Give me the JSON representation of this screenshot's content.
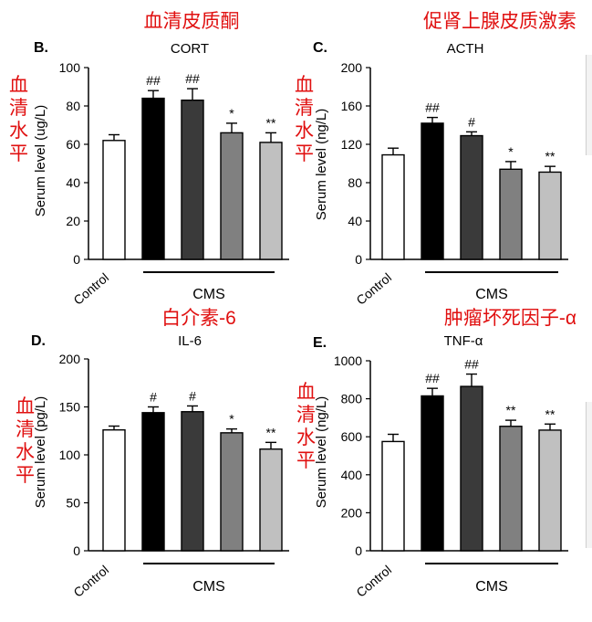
{
  "colors": {
    "annotation": "#e01010",
    "axis": "#000000",
    "control_fill": "#ffffff",
    "bar_fills": [
      "#ffffff",
      "#000000",
      "#3a3a3a",
      "#808080",
      "#c0c0c0"
    ]
  },
  "chart_data": [
    {
      "type": "bar",
      "panel_letter": "B.",
      "title": "CORT",
      "annotation_title": "血清皮质酮",
      "annotation_ylabel": "血清水平",
      "ylabel": "Serum level  (ug/L)",
      "xlabel": "",
      "ylim": [
        0,
        100
      ],
      "yticks": [
        0,
        20,
        40,
        60,
        80,
        100
      ],
      "categories": [
        "Control",
        "CMS-1",
        "CMS-2",
        "CMS-3",
        "CMS-4"
      ],
      "category_labels": [
        "Control",
        "",
        "",
        "",
        ""
      ],
      "group_label": "CMS",
      "values": [
        62,
        84,
        83,
        66,
        61
      ],
      "errors": [
        3,
        4,
        6,
        5,
        5
      ],
      "significance": [
        "",
        "##",
        "##",
        "*",
        "**"
      ]
    },
    {
      "type": "bar",
      "panel_letter": "C.",
      "title": "ACTH",
      "annotation_title": "促肾上腺皮质激素",
      "annotation_ylabel": "血清水平",
      "ylabel": "Serum level (ng/L)",
      "xlabel": "",
      "ylim": [
        0,
        200
      ],
      "yticks": [
        0,
        40,
        80,
        120,
        160,
        200
      ],
      "categories": [
        "Control",
        "CMS-1",
        "CMS-2",
        "CMS-3",
        "CMS-4"
      ],
      "category_labels": [
        "Control",
        "",
        "",
        "",
        ""
      ],
      "group_label": "CMS",
      "values": [
        109,
        142,
        129,
        94,
        91
      ],
      "errors": [
        7,
        6,
        4,
        8,
        6
      ],
      "significance": [
        "",
        "##",
        "#",
        "*",
        "**"
      ]
    },
    {
      "type": "bar",
      "panel_letter": "D.",
      "title": "IL-6",
      "annotation_title": "白介素-6",
      "annotation_ylabel": "血清水平",
      "ylabel": "Serum level (pg/L)",
      "xlabel": "",
      "ylim": [
        0,
        200
      ],
      "yticks": [
        0,
        50,
        100,
        150,
        200
      ],
      "categories": [
        "Control",
        "CMS-1",
        "CMS-2",
        "CMS-3",
        "CMS-4"
      ],
      "category_labels": [
        "Control",
        "",
        "",
        "",
        ""
      ],
      "group_label": "CMS",
      "values": [
        126,
        144,
        145,
        123,
        106
      ],
      "errors": [
        4,
        6,
        6,
        4,
        7
      ],
      "significance": [
        "",
        "#",
        "#",
        "*",
        "**"
      ]
    },
    {
      "type": "bar",
      "panel_letter": "E.",
      "title": "TNF-α",
      "annotation_title": "肿瘤坏死因子-α",
      "annotation_ylabel": "血清水平",
      "ylabel": "Serum level (ng/L)",
      "xlabel": "",
      "ylim": [
        0,
        1000
      ],
      "yticks": [
        0,
        200,
        400,
        600,
        800,
        1000
      ],
      "categories": [
        "Control",
        "CMS-1",
        "CMS-2",
        "CMS-3",
        "CMS-4"
      ],
      "category_labels": [
        "Control",
        "",
        "",
        "",
        ""
      ],
      "group_label": "CMS",
      "values": [
        575,
        815,
        865,
        655,
        635
      ],
      "errors": [
        38,
        40,
        65,
        32,
        32
      ],
      "significance": [
        "",
        "##",
        "##",
        "**",
        "**"
      ]
    }
  ]
}
